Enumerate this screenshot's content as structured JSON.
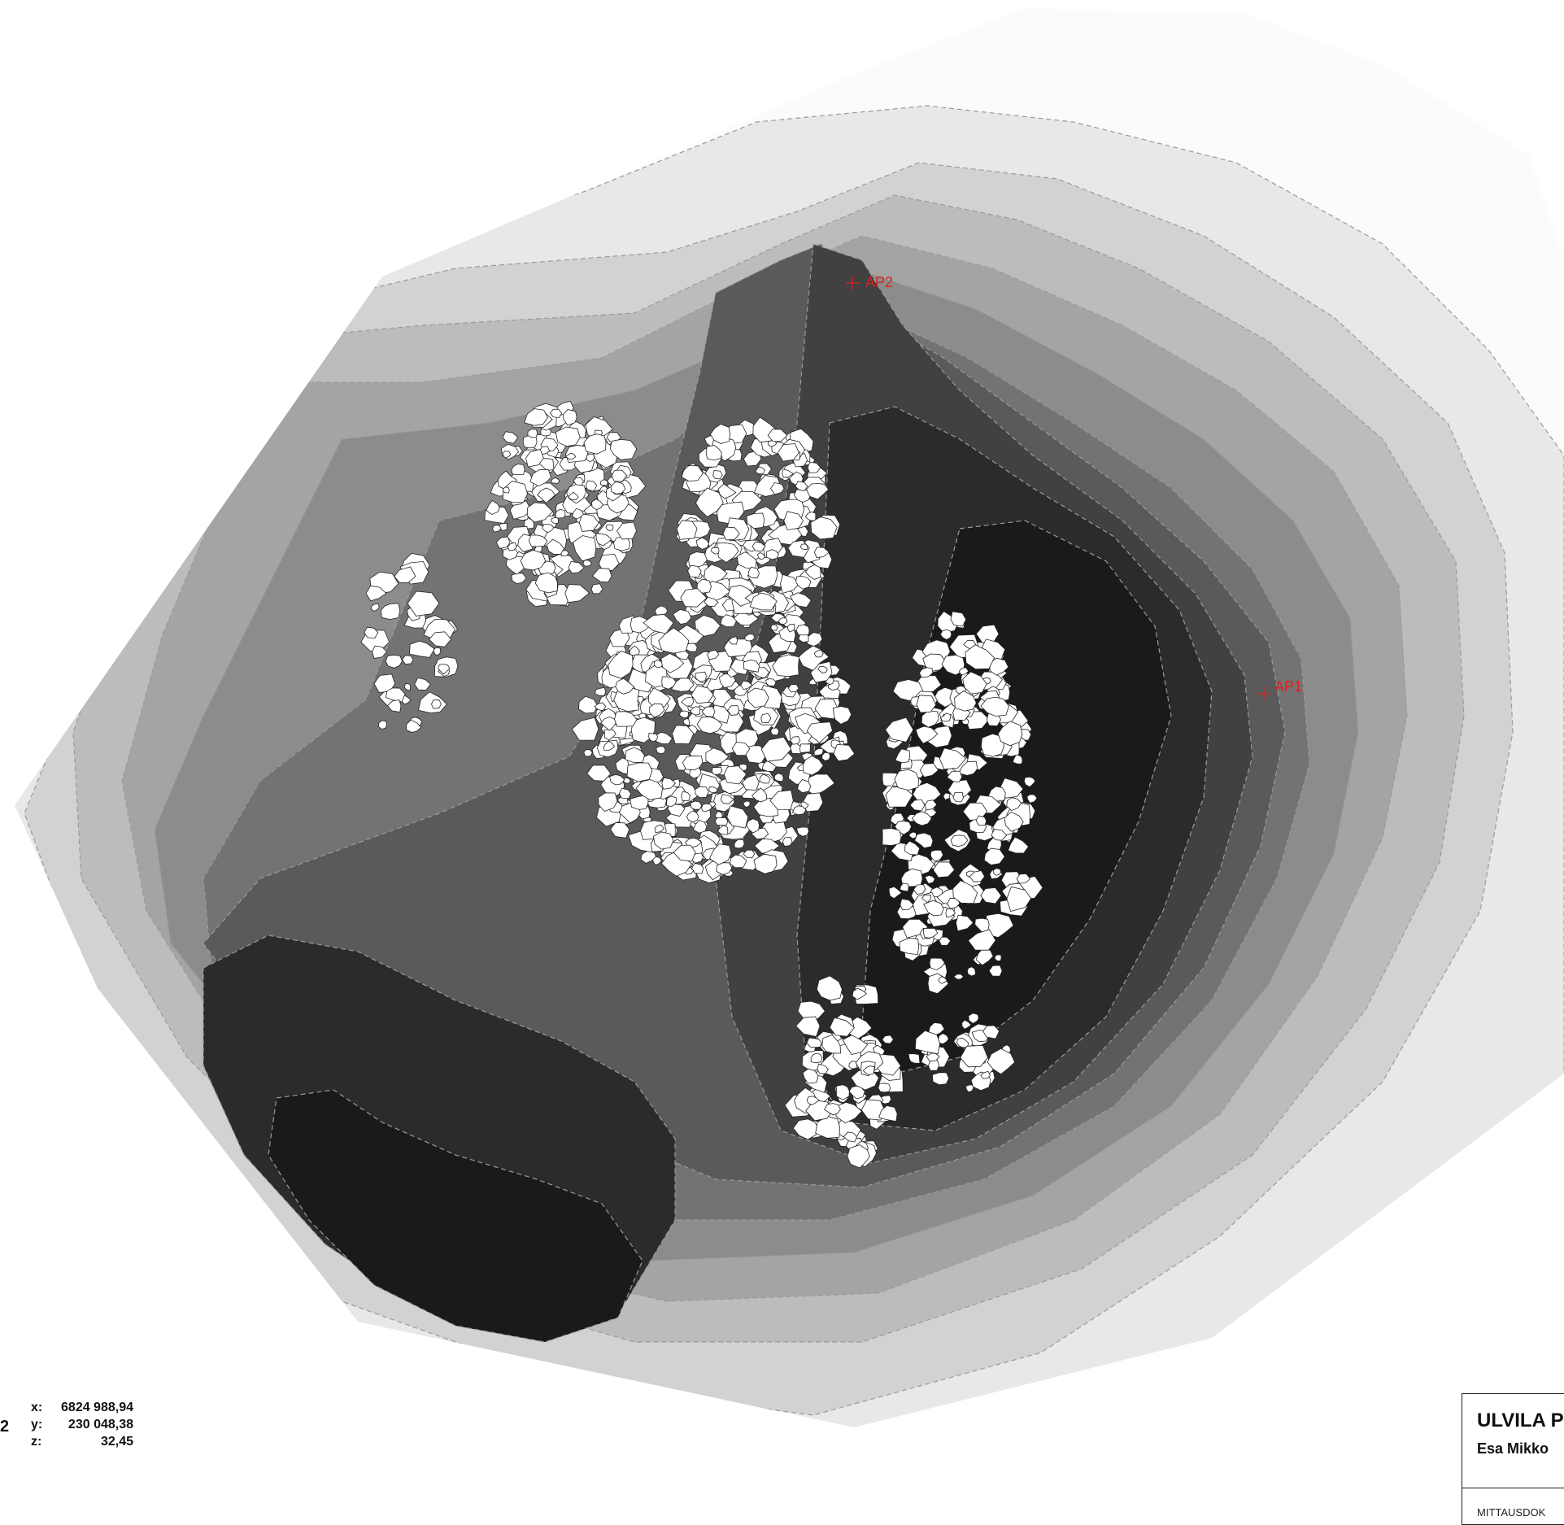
{
  "map": {
    "points": [
      {
        "label": "AP1"
      },
      {
        "label": "AP2"
      }
    ],
    "colors": {
      "zone_1": "#fbfbfb",
      "zone_2": "#e8e8e8",
      "zone_3": "#d2d2d2",
      "zone_4": "#bcbcbc",
      "zone_5": "#a4a4a4",
      "zone_6": "#8c8c8c",
      "zone_7": "#737373",
      "zone_8": "#5a5a5a",
      "zone_9": "#414141",
      "zone_10": "#2b2b2b",
      "zone_11": "#1a1a1a",
      "stones": "#ffffff",
      "survey_point": "#e01f1f"
    }
  },
  "coordinates": {
    "point_suffix": "2",
    "x_label": "x:",
    "x_value": "6824 988,94",
    "y_label": "y:",
    "y_value": "230 048,38",
    "z_label": "z:",
    "z_value": "32,45"
  },
  "title_block": {
    "title": "ULVILA P",
    "author": "Esa Mikko",
    "doc_type": "MITTAUSDOK"
  }
}
